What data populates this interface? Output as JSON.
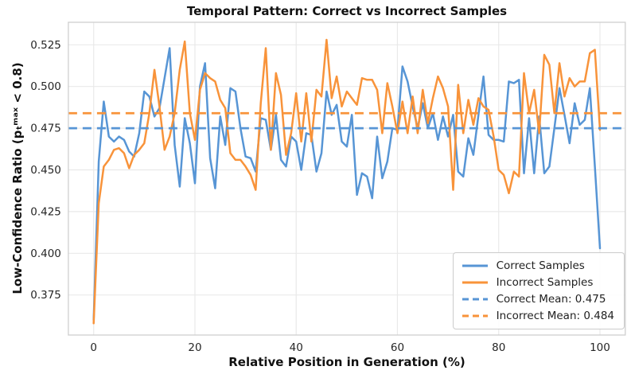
{
  "chart_data": {
    "type": "line",
    "title": "Temporal Pattern: Correct vs Incorrect Samples",
    "xlabel": "Relative Position in Generation (%)",
    "ylabel": "Low-Confidence Ratio (pₜᵐᵃˣ < 0.8)",
    "xlim": [
      -5,
      105
    ],
    "ylim": [
      0.351,
      0.5385
    ],
    "x_ticks": [
      0,
      20,
      40,
      60,
      80,
      100
    ],
    "y_ticks": [
      0.375,
      0.4,
      0.425,
      0.45,
      0.475,
      0.5,
      0.525
    ],
    "grid": true,
    "legend_position": "lower right",
    "x_start": 0,
    "x_step": 1,
    "colors": {
      "correct": "#5795D5",
      "incorrect": "#F8933A"
    },
    "series": [
      {
        "name": "Correct Samples",
        "color": "#5795D5",
        "style": "solid",
        "values": [
          0.36,
          0.455,
          0.491,
          0.47,
          0.467,
          0.47,
          0.468,
          0.461,
          0.458,
          0.472,
          0.497,
          0.494,
          0.482,
          0.487,
          0.505,
          0.523,
          0.465,
          0.44,
          0.481,
          0.466,
          0.442,
          0.5,
          0.514,
          0.457,
          0.439,
          0.482,
          0.465,
          0.499,
          0.497,
          0.475,
          0.458,
          0.457,
          0.449,
          0.481,
          0.48,
          0.462,
          0.483,
          0.456,
          0.452,
          0.47,
          0.467,
          0.45,
          0.472,
          0.471,
          0.449,
          0.46,
          0.497,
          0.483,
          0.489,
          0.467,
          0.464,
          0.483,
          0.435,
          0.448,
          0.446,
          0.433,
          0.47,
          0.445,
          0.455,
          0.475,
          0.474,
          0.512,
          0.503,
          0.488,
          0.475,
          0.49,
          0.475,
          0.484,
          0.468,
          0.482,
          0.47,
          0.483,
          0.449,
          0.446,
          0.469,
          0.459,
          0.483,
          0.506,
          0.471,
          0.468,
          0.468,
          0.467,
          0.503,
          0.502,
          0.504,
          0.448,
          0.481,
          0.448,
          0.482,
          0.448,
          0.452,
          0.475,
          0.499,
          0.483,
          0.466,
          0.49,
          0.477,
          0.48,
          0.499,
          0.452,
          0.403
        ]
      },
      {
        "name": "Incorrect Samples",
        "color": "#F8933A",
        "style": "solid",
        "values": [
          0.358,
          0.43,
          0.452,
          0.456,
          0.462,
          0.463,
          0.46,
          0.451,
          0.459,
          0.462,
          0.466,
          0.484,
          0.51,
          0.488,
          0.462,
          0.47,
          0.484,
          0.51,
          0.527,
          0.484,
          0.468,
          0.498,
          0.508,
          0.505,
          0.503,
          0.492,
          0.487,
          0.46,
          0.456,
          0.456,
          0.452,
          0.447,
          0.438,
          0.49,
          0.523,
          0.462,
          0.508,
          0.495,
          0.459,
          0.472,
          0.496,
          0.467,
          0.496,
          0.467,
          0.498,
          0.494,
          0.528,
          0.493,
          0.506,
          0.488,
          0.497,
          0.493,
          0.489,
          0.505,
          0.504,
          0.504,
          0.498,
          0.472,
          0.502,
          0.488,
          0.472,
          0.491,
          0.472,
          0.494,
          0.472,
          0.498,
          0.478,
          0.493,
          0.506,
          0.499,
          0.488,
          0.438,
          0.501,
          0.472,
          0.492,
          0.477,
          0.493,
          0.488,
          0.486,
          0.47,
          0.45,
          0.447,
          0.436,
          0.449,
          0.446,
          0.508,
          0.484,
          0.498,
          0.472,
          0.519,
          0.513,
          0.484,
          0.514,
          0.494,
          0.505,
          0.5,
          0.503,
          0.503,
          0.52,
          0.522,
          0.474
        ]
      },
      {
        "name": "Correct Mean: 0.475",
        "color": "#5795D5",
        "style": "dashed",
        "mean": 0.475
      },
      {
        "name": "Incorrect Mean: 0.484",
        "color": "#F8933A",
        "style": "dashed",
        "mean": 0.484
      }
    ]
  }
}
